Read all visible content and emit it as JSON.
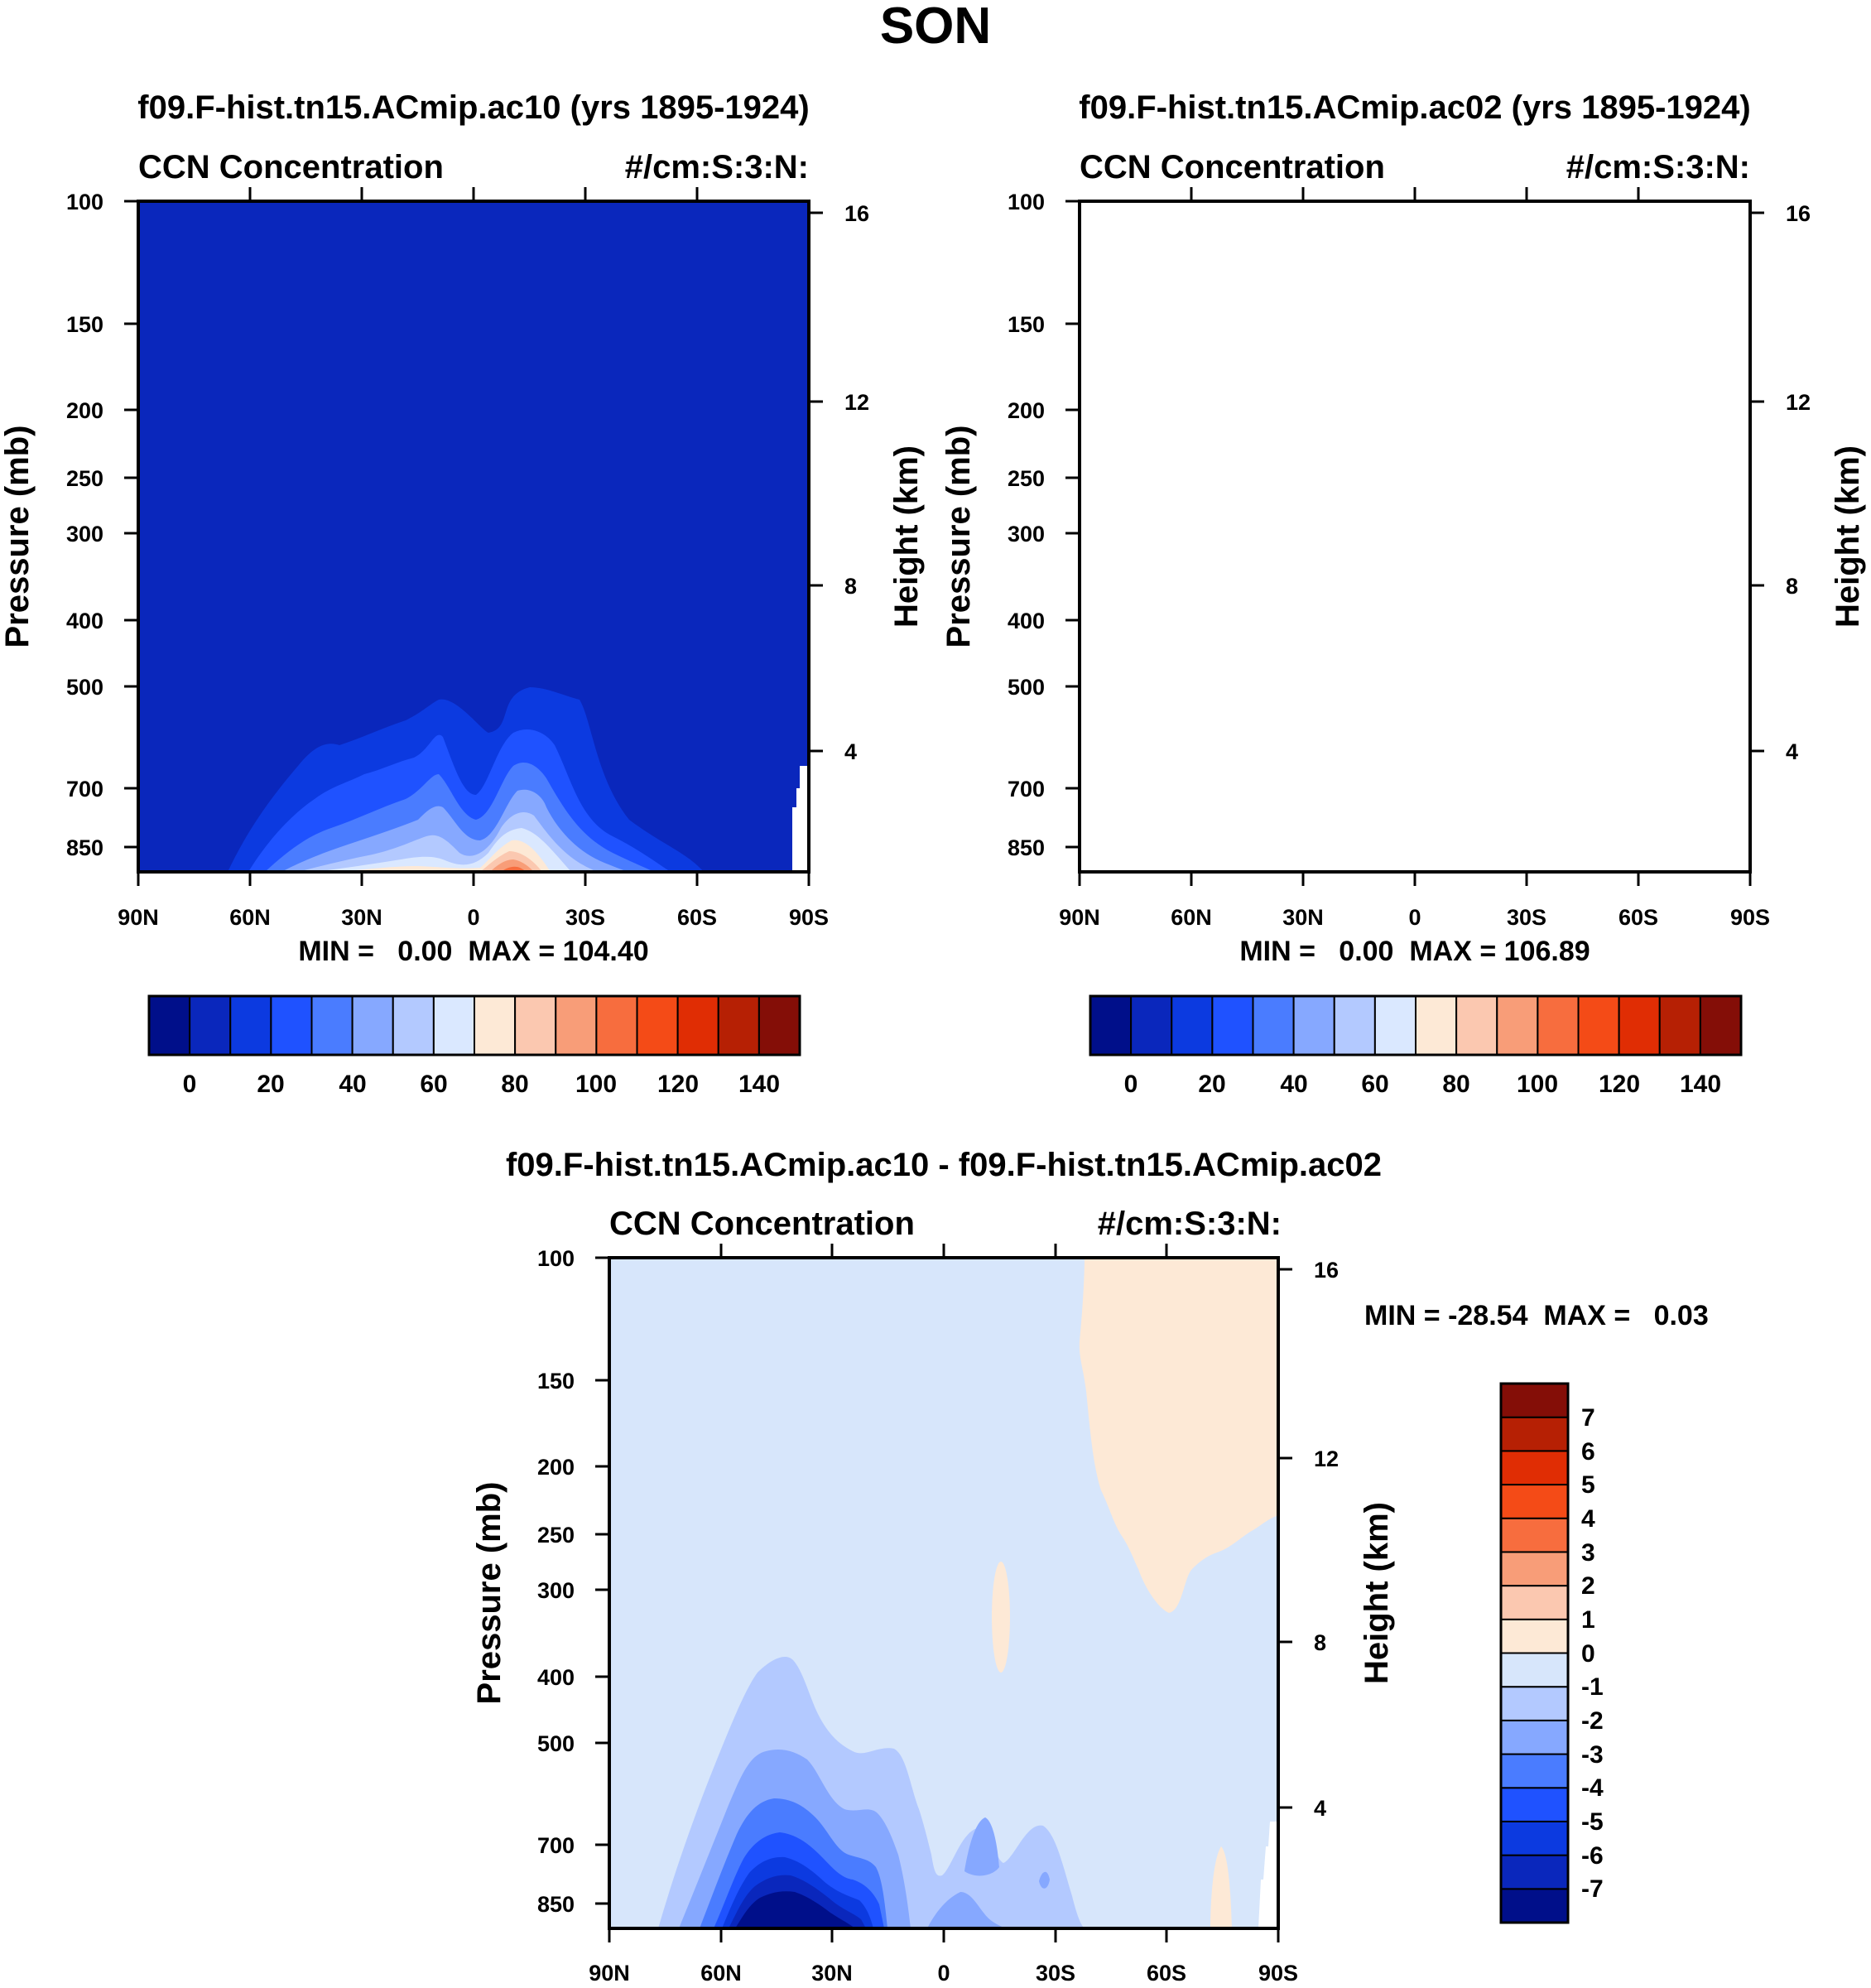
{
  "page_title": "SON",
  "colors": {
    "abs_scale": [
      "#000f8a",
      "#0a27bc",
      "#0c3ae0",
      "#1f52ff",
      "#4a7cff",
      "#86a8ff",
      "#b3c9ff",
      "#dae8ff",
      "#fde9d6",
      "#fbc8b0",
      "#f89d78",
      "#f76d3e",
      "#f44b17",
      "#e02d04",
      "#b62004",
      "#840e07"
    ],
    "diff_scale": [
      "#000f8a",
      "#0a27bc",
      "#0c3ae0",
      "#1f52ff",
      "#4a7cff",
      "#86a8ff",
      "#b3c9ff",
      "#d7e6fb",
      "#fde9d6",
      "#fbc8b0",
      "#f89d78",
      "#f76d3e",
      "#f44b17",
      "#e02d04",
      "#b62004",
      "#840e07"
    ]
  },
  "chart_data": [
    {
      "type": "heatmap",
      "title": "f09.F-hist.tn15.ACmip.ac10 (yrs 1895-1924)",
      "left_label": "CCN Concentration",
      "right_label": "#/cm:S:3:N:",
      "ylabel": "Pressure (mb)",
      "ylabel_right": "Height (km)",
      "x_ticks": [
        "90N",
        "60N",
        "30N",
        "0",
        "30S",
        "60S",
        "90S"
      ],
      "y_ticks": [
        "100",
        "150",
        "200",
        "250",
        "300",
        "400",
        "500",
        "700",
        "850"
      ],
      "y_ticks_right": [
        "16",
        "12",
        "8",
        "4"
      ],
      "stats": "MIN =   0.00  MAX = 104.40",
      "colorbar_labels": [
        "0",
        "20",
        "40",
        "60",
        "80",
        "100",
        "120",
        "140"
      ],
      "levels": [
        -10,
        0,
        10,
        20,
        30,
        40,
        50,
        60,
        70,
        80,
        90,
        100,
        110,
        120,
        130,
        140,
        150
      ]
    },
    {
      "type": "heatmap",
      "title": "f09.F-hist.tn15.ACmip.ac02 (yrs 1895-1924)",
      "left_label": "CCN Concentration",
      "right_label": "#/cm:S:3:N:",
      "ylabel": "Pressure (mb)",
      "ylabel_right": "Height (km)",
      "x_ticks": [
        "90N",
        "60N",
        "30N",
        "0",
        "30S",
        "60S",
        "90S"
      ],
      "y_ticks": [
        "100",
        "150",
        "200",
        "250",
        "300",
        "400",
        "500",
        "700",
        "850"
      ],
      "y_ticks_right": [
        "16",
        "12",
        "8",
        "4"
      ],
      "stats": "MIN =   0.00  MAX = 106.89",
      "colorbar_labels": [
        "0",
        "20",
        "40",
        "60",
        "80",
        "100",
        "120",
        "140"
      ],
      "levels": [
        -10,
        0,
        10,
        20,
        30,
        40,
        50,
        60,
        70,
        80,
        90,
        100,
        110,
        120,
        130,
        140,
        150
      ]
    },
    {
      "type": "heatmap",
      "title": "f09.F-hist.tn15.ACmip.ac10 - f09.F-hist.tn15.ACmip.ac02",
      "left_label": "CCN Concentration",
      "right_label": "#/cm:S:3:N:",
      "ylabel": "Pressure (mb)",
      "ylabel_right": "Height (km)",
      "x_ticks": [
        "90N",
        "60N",
        "30N",
        "0",
        "30S",
        "60S",
        "90S"
      ],
      "y_ticks": [
        "100",
        "150",
        "200",
        "250",
        "300",
        "400",
        "500",
        "700",
        "850"
      ],
      "y_ticks_right": [
        "16",
        "12",
        "8",
        "4"
      ],
      "stats": "MIN = -28.54  MAX =   0.03",
      "colorbar_labels": [
        "7",
        "6",
        "5",
        "4",
        "3",
        "2",
        "1",
        "0",
        "-1",
        "-2",
        "-3",
        "-4",
        "-5",
        "-6",
        "-7"
      ],
      "levels": [
        -8,
        -7,
        -6,
        -5,
        -4,
        -3,
        -2,
        -1,
        0,
        1,
        2,
        3,
        4,
        5,
        6,
        7,
        8
      ]
    }
  ]
}
